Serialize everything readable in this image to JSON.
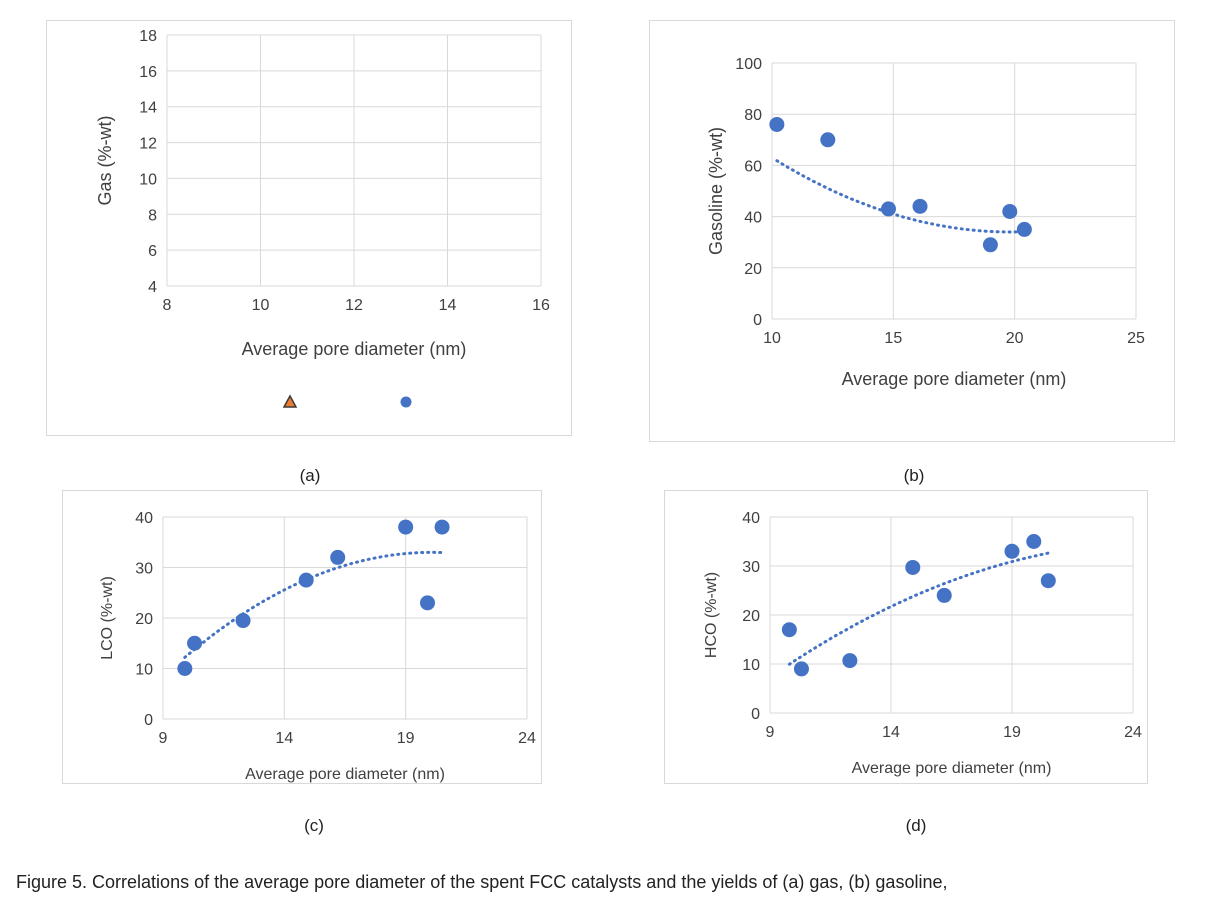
{
  "chart_data": [
    {
      "id": "a",
      "type": "scatter",
      "panel_label": "(a)",
      "xlabel": "Average pore diameter (nm)",
      "ylabel": "Gas (%-wt)",
      "xlim": [
        8,
        16
      ],
      "ylim": [
        4,
        18
      ],
      "xticks": [
        8,
        10,
        12,
        14,
        16
      ],
      "yticks": [
        4,
        6,
        8,
        10,
        12,
        14,
        16,
        18
      ],
      "grid": true,
      "legend": "bottom",
      "series": [
        {
          "marker": "triangle",
          "color": "#ed7d31",
          "stroke": "#3a3a3a",
          "x": [],
          "y": []
        },
        {
          "marker": "circle",
          "color": "#4472c4",
          "x": [],
          "y": []
        }
      ]
    },
    {
      "id": "b",
      "type": "scatter",
      "panel_label": "(b)",
      "xlabel": "Average pore diameter (nm)",
      "ylabel": "Gasoline (%-wt)",
      "xlim": [
        10,
        25
      ],
      "ylim": [
        0,
        100
      ],
      "xticks": [
        10,
        15,
        20,
        25
      ],
      "yticks": [
        0,
        20,
        40,
        60,
        80,
        100
      ],
      "grid": true,
      "series": [
        {
          "marker": "circle",
          "color": "#4472c4",
          "x": [
            10.2,
            12.3,
            14.8,
            16.1,
            19.0,
            19.8,
            20.4
          ],
          "y": [
            76,
            70,
            43,
            44,
            29,
            42,
            35
          ],
          "trendline": {
            "type": "polynomial",
            "style": "dotted",
            "x": [
              10.2,
              20.4
            ],
            "coef": [
              0.3,
              -11.9,
              152.0
            ]
          }
        }
      ]
    },
    {
      "id": "c",
      "type": "scatter",
      "panel_label": "(c)",
      "xlabel": "Average pore diameter (nm)",
      "ylabel": "LCO (%-wt)",
      "xlim": [
        9,
        24
      ],
      "ylim": [
        0,
        40
      ],
      "xticks": [
        9,
        14,
        19,
        24
      ],
      "yticks": [
        0,
        10,
        20,
        30,
        40
      ],
      "grid": true,
      "series": [
        {
          "marker": "circle",
          "color": "#4472c4",
          "x": [
            9.9,
            10.3,
            12.3,
            14.9,
            16.2,
            19.0,
            19.9,
            20.5
          ],
          "y": [
            10,
            15,
            19.5,
            27.5,
            32,
            38,
            23,
            38
          ],
          "trendline": {
            "type": "polynomial",
            "style": "dotted",
            "x": [
              9.9,
              20.5
            ],
            "coef": [
              -0.2,
              8.04,
              -47.8
            ]
          }
        }
      ]
    },
    {
      "id": "d",
      "type": "scatter",
      "panel_label": "(d)",
      "xlabel": "Average pore diameter (nm)",
      "ylabel": "HCO (%-wt)",
      "xlim": [
        9,
        24
      ],
      "ylim": [
        0,
        40
      ],
      "xticks": [
        9,
        14,
        19,
        24
      ],
      "yticks": [
        0,
        10,
        20,
        30,
        40
      ],
      "grid": true,
      "series": [
        {
          "marker": "circle",
          "color": "#4472c4",
          "x": [
            9.8,
            10.3,
            12.3,
            14.9,
            16.2,
            19.0,
            19.9,
            20.5
          ],
          "y": [
            17,
            9,
            10.7,
            29.7,
            24,
            33,
            35,
            27
          ],
          "trendline": {
            "type": "polynomial",
            "style": "dotted",
            "x": [
              9.8,
              20.5
            ],
            "coef": [
              -0.105,
              5.3,
              -31.9
            ]
          }
        }
      ]
    }
  ],
  "caption": "Figure 5. Correlations of the average pore diameter of the spent FCC catalysts and the yields of (a) gas, (b) gasoline,"
}
